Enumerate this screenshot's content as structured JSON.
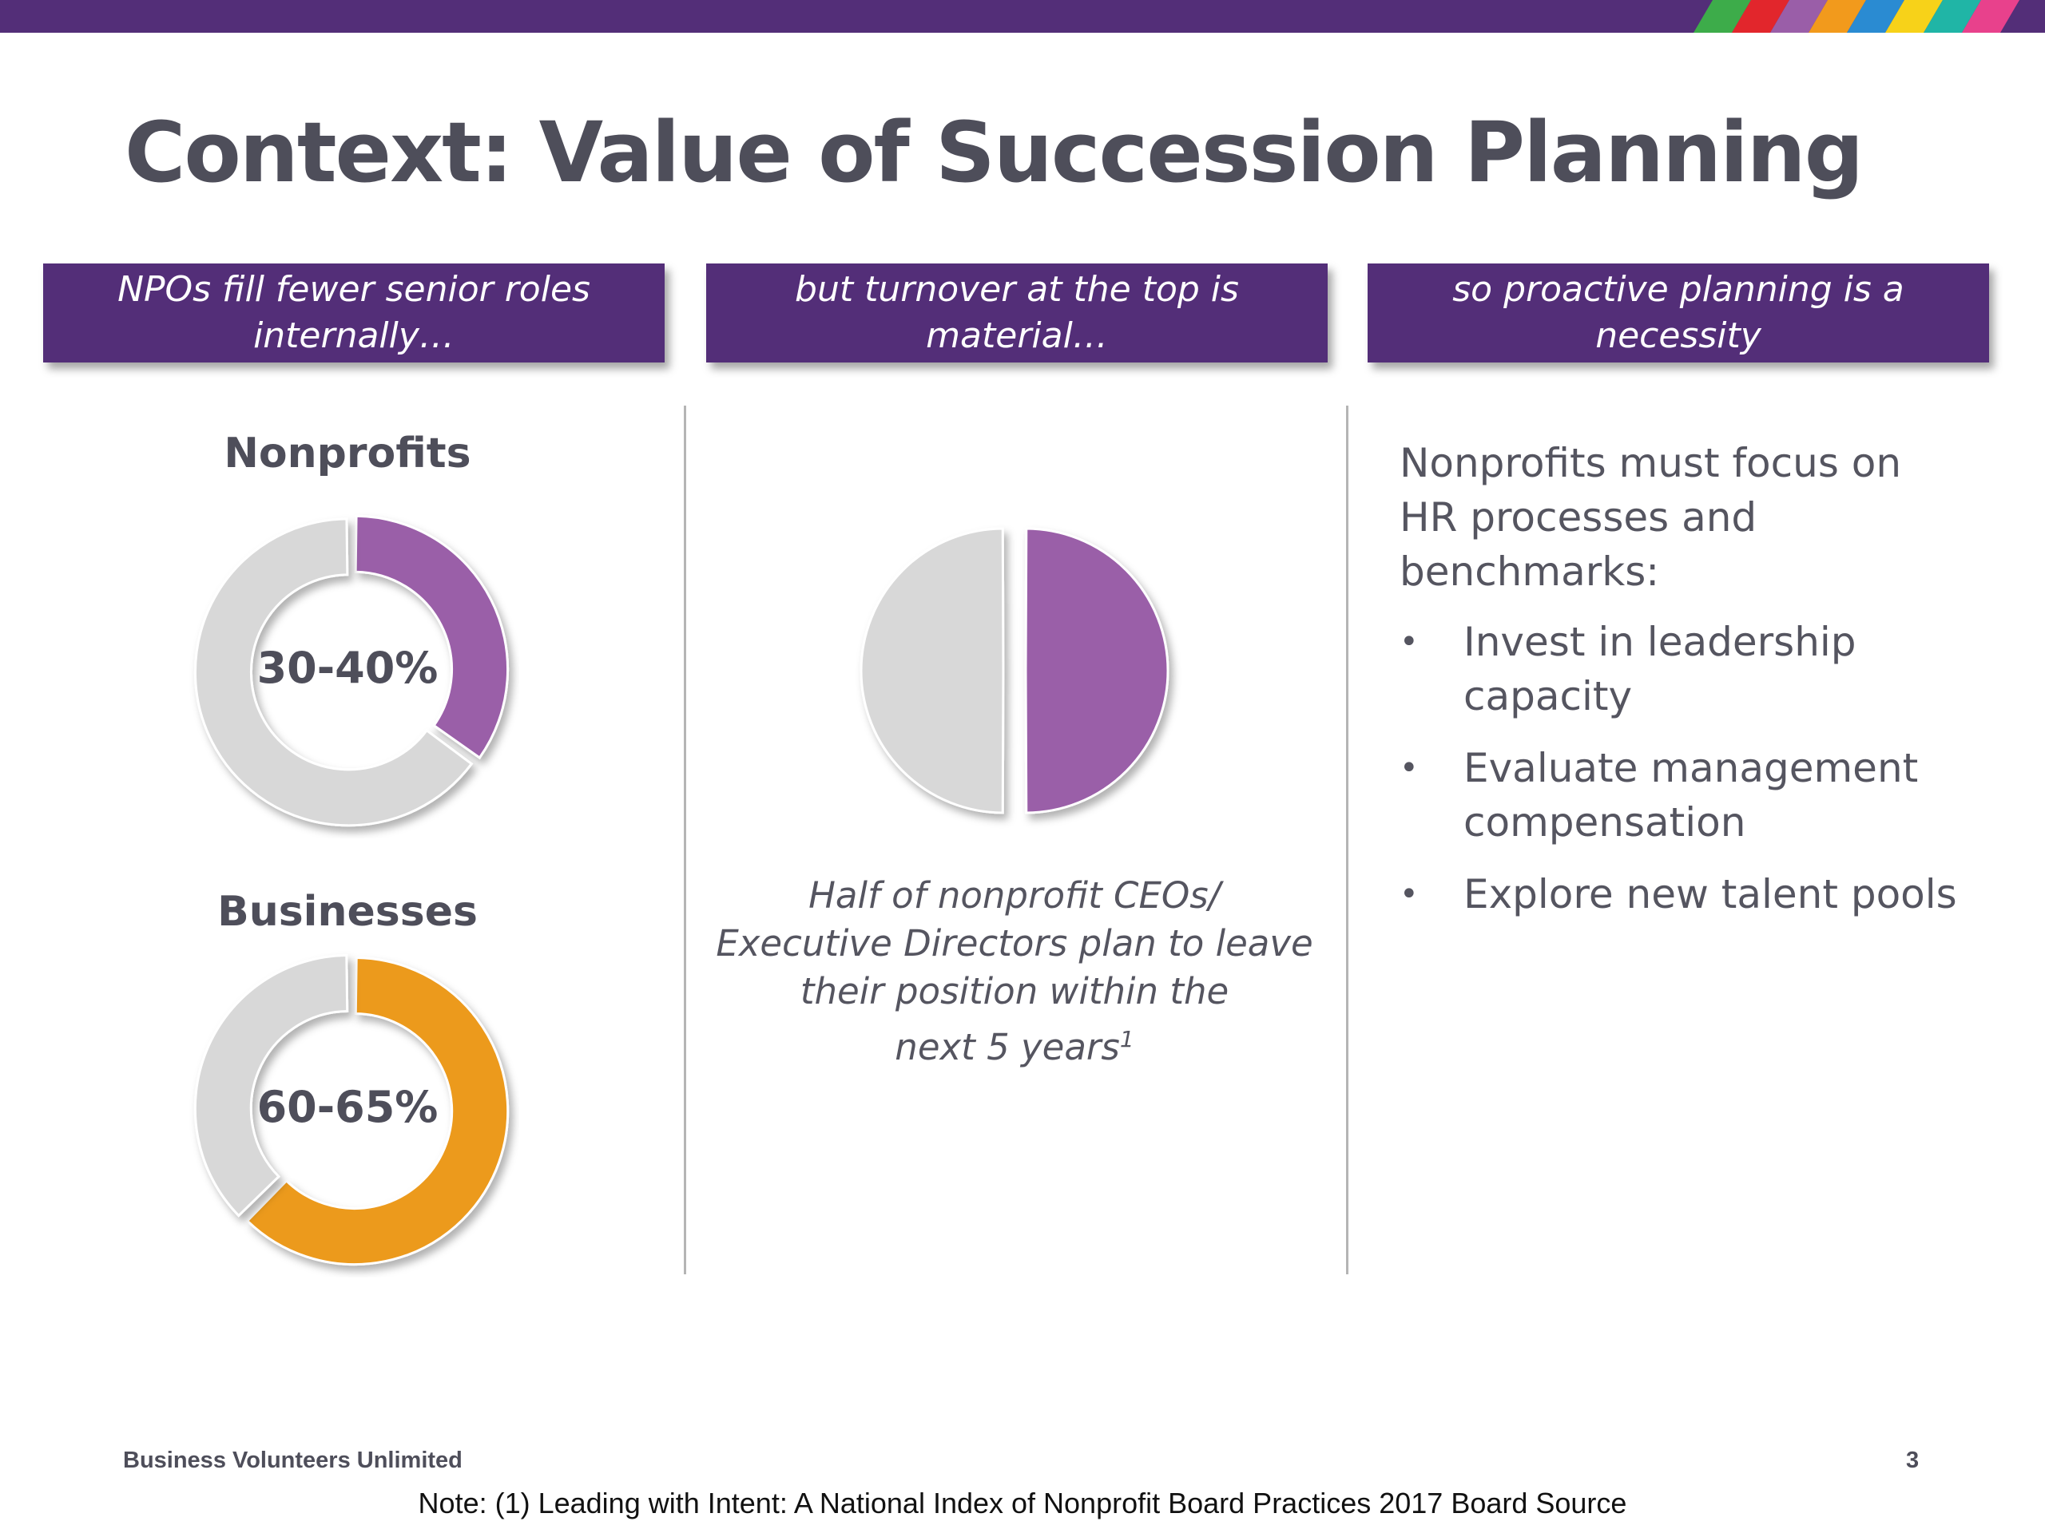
{
  "slide": {
    "title": "Context: Value of Succession Planning",
    "page_number": "3",
    "footer_org": "Business Volunteers Unlimited",
    "note": "Note: (1) Leading with Intent: A National Index of Nonprofit Board Practices 2017 Board Source"
  },
  "colors": {
    "brand_purple": "#532e78",
    "slice_purple": "#9a5ea8",
    "slice_orange": "#ec9a1f",
    "slice_gray": "#d8d8d8",
    "stripe_colors": [
      "#3dac4a",
      "#e2262c",
      "#9a5ea8",
      "#f29a1c",
      "#2a8bd2",
      "#f7d219",
      "#20b5a6",
      "#e8418c"
    ]
  },
  "headers": [
    {
      "lines": [
        "NPOs fill fewer senior roles",
        "internally…"
      ]
    },
    {
      "lines": [
        "but turnover at the top is material…"
      ]
    },
    {
      "lines": [
        "so proactive planning is a",
        "necessity"
      ]
    }
  ],
  "left_column": {
    "nonprofits_title": "Nonprofits",
    "nonprofits_label": "30-40%",
    "businesses_title": "Businesses",
    "businesses_label": "60-65%"
  },
  "middle_column": {
    "caption_lines": [
      "Half of nonprofit CEOs/",
      "Executive Directors plan to leave",
      "their position within the"
    ],
    "caption_last": "next 5 years",
    "caption_footnote": "1"
  },
  "right_column": {
    "intro_lines": [
      "Nonprofits must focus on",
      "HR processes and",
      "benchmarks:"
    ],
    "bullet_marker": "•",
    "bullets": [
      {
        "lines": [
          "Invest in leadership",
          "capacity"
        ]
      },
      {
        "lines": [
          "Evaluate management",
          "compensation"
        ]
      },
      {
        "lines": [
          "Explore new talent pools"
        ]
      }
    ]
  },
  "chart_data": [
    {
      "type": "pie",
      "title": "Nonprofits",
      "center_label": "30-40%",
      "slices": [
        {
          "value": 35,
          "color": "#9a5ea8"
        },
        {
          "value": 65,
          "color": "#d8d8d8"
        }
      ]
    },
    {
      "type": "pie",
      "title": "Businesses",
      "center_label": "60-65%",
      "slices": [
        {
          "value": 62.5,
          "color": "#ec9a1f"
        },
        {
          "value": 37.5,
          "color": "#d8d8d8"
        }
      ]
    },
    {
      "type": "pie",
      "slices": [
        {
          "value": 50,
          "color": "#9a5ea8"
        },
        {
          "value": 50,
          "color": "#d8d8d8"
        }
      ]
    }
  ]
}
